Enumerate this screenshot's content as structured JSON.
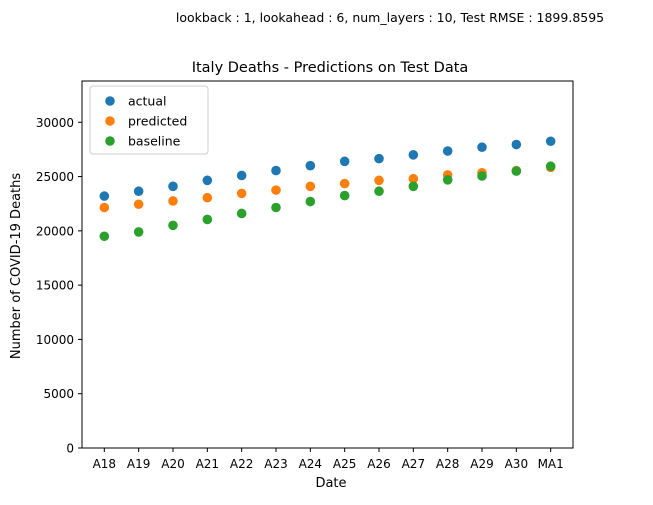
{
  "chart_data": {
    "type": "scatter",
    "suptitle": "lookback : 1, lookahead : 6, num_layers : 10, Test RMSE : 1899.8595",
    "title": "Italy Deaths - Predictions on Test Data",
    "xlabel": "Date",
    "ylabel": "Number of COVID-19 Deaths",
    "categories": [
      "A18",
      "A19",
      "A20",
      "A21",
      "A22",
      "A23",
      "A24",
      "A25",
      "A26",
      "A27",
      "A28",
      "A29",
      "A30",
      "MA1"
    ],
    "ylim": [
      0,
      33800
    ],
    "yticks": [
      0,
      5000,
      10000,
      15000,
      20000,
      25000,
      30000
    ],
    "grid": false,
    "legend_position": "top-left",
    "series": [
      {
        "name": "actual",
        "color": "#1f77b4",
        "values": [
          23200,
          23650,
          24100,
          24650,
          25100,
          25550,
          26000,
          26400,
          26650,
          27000,
          27350,
          27700,
          27950,
          28250
        ]
      },
      {
        "name": "predicted",
        "color": "#ff7f0e",
        "values": [
          22150,
          22450,
          22750,
          23050,
          23450,
          23750,
          24100,
          24350,
          24650,
          24800,
          25150,
          25350,
          25550,
          25850
        ]
      },
      {
        "name": "baseline",
        "color": "#2ca02c",
        "values": [
          19500,
          19900,
          20500,
          21050,
          21600,
          22150,
          22700,
          23250,
          23650,
          24100,
          24700,
          25050,
          25500,
          25950
        ]
      }
    ]
  }
}
